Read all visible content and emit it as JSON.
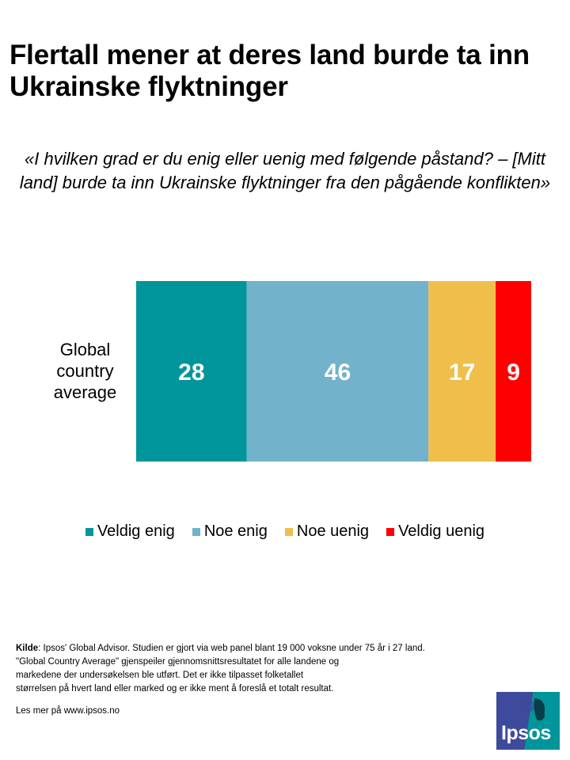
{
  "title": "Flertall mener at deres land burde ta inn Ukrainske flyktninger",
  "question": "«I hvilken grad er du enig eller uenig med følgende påstand? – [Mitt land] burde ta inn Ukrainske flyktninger fra den pågående konflikten»",
  "chart_data": {
    "type": "bar",
    "orientation": "horizontal-stacked",
    "categories": [
      "Global country average"
    ],
    "series": [
      {
        "name": "Veldig enig",
        "values": [
          28
        ],
        "color": "#00959a"
      },
      {
        "name": "Noe enig",
        "values": [
          46
        ],
        "color": "#72b2ca"
      },
      {
        "name": "Noe uenig",
        "values": [
          17
        ],
        "color": "#f0be4b"
      },
      {
        "name": "Veldig uenig",
        "values": [
          9
        ],
        "color": "#ff0000"
      }
    ],
    "legend_position": "bottom",
    "grid": false
  },
  "source": {
    "label": "Kilde",
    "lines": [
      ": Ipsos' Global Advisor. Studien er gjort via web panel blant 19 000 voksne under 75 år i 27 land.",
      "\"Global Country Average\" gjenspeiler gjennomsnittsresultatet for alle landene og",
      "markedene der undersøkelsen ble utført. Det er ikke tilpasset folketallet",
      "størrelsen på hvert land eller marked og er ikke ment å foreslå et totalt resultat."
    ]
  },
  "more": "Les mer på www.ipsos.no",
  "logo": {
    "text": "Ipsos"
  }
}
